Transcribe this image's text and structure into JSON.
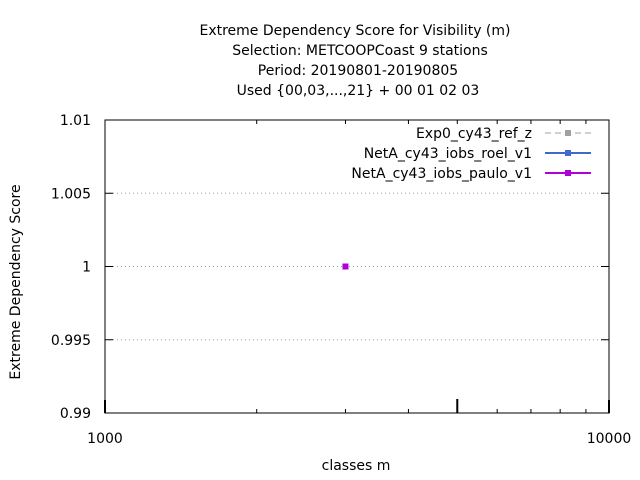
{
  "chart_data": {
    "type": "scatter",
    "title_lines": [
      "Extreme Dependency Score  for Visibility (m)",
      "Selection: METCOOPCoast      9 stations",
      "Period: 20190801-20190805",
      "Used {00,03,...,21} + 00 01 02 03"
    ],
    "xlabel": "classes m",
    "ylabel": "Extreme Dependency Score",
    "x_scale": "log",
    "xlim": [
      1000,
      10000
    ],
    "ylim": [
      0.99,
      1.01
    ],
    "x_ticks": [
      1000,
      10000
    ],
    "x_tick_labels": [
      "1000",
      "10000"
    ],
    "y_ticks": [
      0.99,
      0.995,
      1,
      1.005,
      1.01
    ],
    "y_tick_labels": [
      "0.99",
      "0.995",
      "1",
      "1.005",
      "1.01"
    ],
    "grid": "horizontal dotted",
    "legend_position": "top-right",
    "series": [
      {
        "name": "Exp0_cy43_ref_z",
        "color": "#a0a0a0",
        "dash": true,
        "points": []
      },
      {
        "name": "NetA_cy43_iobs_roel_v1",
        "color": "#4169c8",
        "dash": false,
        "points": []
      },
      {
        "name": "NetA_cy43_iobs_paulo_v1",
        "color": "#b000d8",
        "dash": false,
        "points": [
          [
            3000,
            1.0
          ]
        ]
      }
    ]
  }
}
